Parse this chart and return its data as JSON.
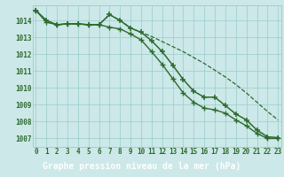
{
  "x": [
    0,
    1,
    2,
    3,
    4,
    5,
    6,
    7,
    8,
    9,
    10,
    11,
    12,
    13,
    14,
    15,
    16,
    17,
    18,
    19,
    20,
    21,
    22,
    23
  ],
  "line1": [
    1014.6,
    1014.0,
    1013.75,
    1013.8,
    1013.8,
    1013.75,
    1013.75,
    1014.35,
    1014.0,
    1013.55,
    1013.3,
    1012.8,
    1012.15,
    1011.35,
    1010.5,
    1009.8,
    1009.45,
    1009.45,
    1008.95,
    1008.45,
    1008.1,
    1007.5,
    1007.1,
    1007.05
  ],
  "line2": [
    1014.6,
    1014.0,
    1013.75,
    1013.8,
    1013.8,
    1013.75,
    1013.75,
    1014.35,
    1014.0,
    1013.55,
    1013.3,
    1013.05,
    1012.75,
    1012.45,
    1012.15,
    1011.8,
    1011.45,
    1011.05,
    1010.65,
    1010.2,
    1009.7,
    1009.15,
    1008.6,
    1008.1
  ],
  "line3": [
    1014.6,
    1013.9,
    1013.75,
    1013.8,
    1013.8,
    1013.75,
    1013.75,
    1013.6,
    1013.5,
    1013.2,
    1012.85,
    1012.15,
    1011.4,
    1010.55,
    1009.7,
    1009.15,
    1008.8,
    1008.7,
    1008.5,
    1008.1,
    1007.75,
    1007.3,
    1007.0,
    1007.0
  ],
  "line_color": "#2d6a2d",
  "bg_color": "#cce8e8",
  "grid_color": "#99cccc",
  "xlabel": "Graphe pression niveau de la mer (hPa)",
  "ylim": [
    1006.5,
    1014.9
  ],
  "yticks": [
    1007,
    1008,
    1009,
    1010,
    1011,
    1012,
    1013,
    1014
  ],
  "xlabel_bg": "#336633",
  "tick_fontsize": 5.5,
  "xlabel_fontsize": 7.0
}
